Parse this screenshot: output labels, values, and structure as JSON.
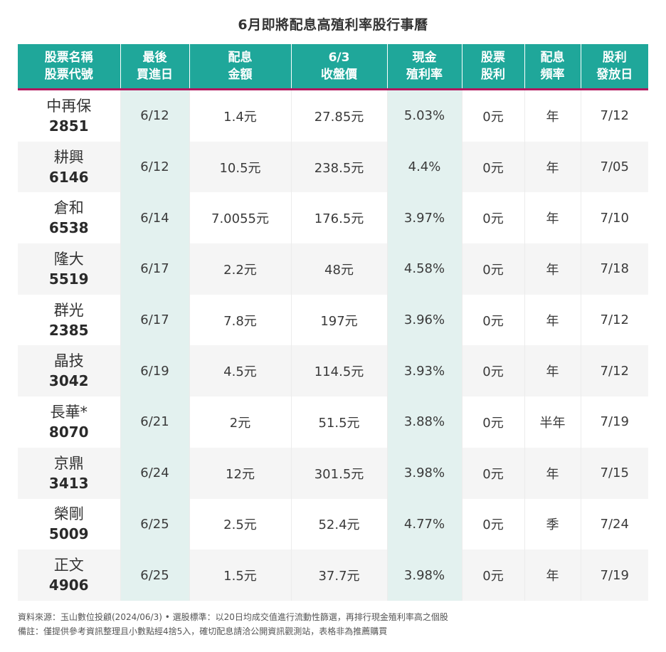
{
  "title": "6月即將配息高殖利率股行事曆",
  "headers": [
    [
      "股票名稱",
      "股票代號"
    ],
    [
      "最後",
      "買進日"
    ],
    [
      "配息",
      "金額"
    ],
    [
      "6/3",
      "收盤價"
    ],
    [
      "現金",
      "殖利率"
    ],
    [
      "股票",
      "股利"
    ],
    [
      "配息",
      "頻率"
    ],
    [
      "股利",
      "發放日"
    ]
  ],
  "rows": [
    {
      "name": "中再保",
      "code": "2851",
      "last_buy": "6/12",
      "dividend": "1.4元",
      "close": "27.85元",
      "yield": "5.03%",
      "stock_div": "0元",
      "freq": "年",
      "pay_date": "7/12"
    },
    {
      "name": "耕興",
      "code": "6146",
      "last_buy": "6/12",
      "dividend": "10.5元",
      "close": "238.5元",
      "yield": "4.4%",
      "stock_div": "0元",
      "freq": "年",
      "pay_date": "7/05"
    },
    {
      "name": "倉和",
      "code": "6538",
      "last_buy": "6/14",
      "dividend": "7.0055元",
      "close": "176.5元",
      "yield": "3.97%",
      "stock_div": "0元",
      "freq": "年",
      "pay_date": "7/10"
    },
    {
      "name": "隆大",
      "code": "5519",
      "last_buy": "6/17",
      "dividend": "2.2元",
      "close": "48元",
      "yield": "4.58%",
      "stock_div": "0元",
      "freq": "年",
      "pay_date": "7/18"
    },
    {
      "name": "群光",
      "code": "2385",
      "last_buy": "6/17",
      "dividend": "7.8元",
      "close": "197元",
      "yield": "3.96%",
      "stock_div": "0元",
      "freq": "年",
      "pay_date": "7/12"
    },
    {
      "name": "晶技",
      "code": "3042",
      "last_buy": "6/19",
      "dividend": "4.5元",
      "close": "114.5元",
      "yield": "3.93%",
      "stock_div": "0元",
      "freq": "年",
      "pay_date": "7/12"
    },
    {
      "name": "長華*",
      "code": "8070",
      "last_buy": "6/21",
      "dividend": "2元",
      "close": "51.5元",
      "yield": "3.88%",
      "stock_div": "0元",
      "freq": "半年",
      "pay_date": "7/19"
    },
    {
      "name": "京鼎",
      "code": "3413",
      "last_buy": "6/24",
      "dividend": "12元",
      "close": "301.5元",
      "yield": "3.98%",
      "stock_div": "0元",
      "freq": "年",
      "pay_date": "7/15"
    },
    {
      "name": "榮剛",
      "code": "5009",
      "last_buy": "6/25",
      "dividend": "2.5元",
      "close": "52.4元",
      "yield": "4.77%",
      "stock_div": "0元",
      "freq": "季",
      "pay_date": "7/24"
    },
    {
      "name": "正文",
      "code": "4906",
      "last_buy": "6/25",
      "dividend": "1.5元",
      "close": "37.7元",
      "yield": "3.98%",
      "stock_div": "0元",
      "freq": "年",
      "pay_date": "7/19"
    }
  ],
  "notes": {
    "source": "資料來源：玉山數位投顧(2024/06/3) • 選股標準：以20日均成交值進行流動性篩選，再排行現金殖利率高之個股",
    "remark": "備註：僅提供參考資訊整理且小數點經4捨5入，確切配息請洽公開資訊觀測站，表格非為推薦購買"
  },
  "colors": {
    "header_bg": "#1fa79a",
    "header_underline": "#b0175e",
    "highlight_col": "#e3f1ef",
    "row_alt": "#f5f5f5"
  }
}
